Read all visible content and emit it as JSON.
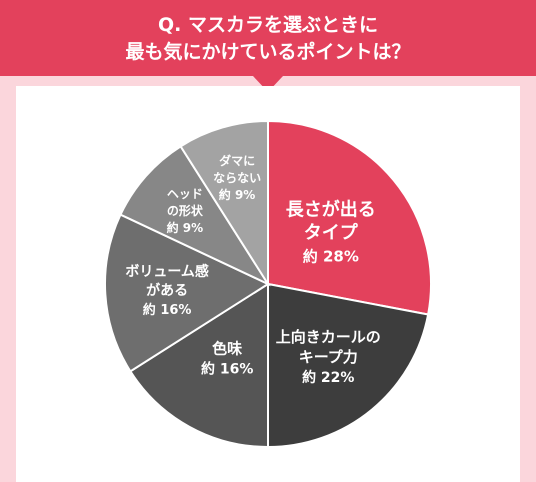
{
  "question": {
    "line1": "Q. マスカラを選ぶときに",
    "line2": "最も気にかけているポイントは？"
  },
  "colors": {
    "banner": "#e3415c",
    "background": "#fbd6dc",
    "panel": "#ffffff"
  },
  "chart_data": {
    "type": "pie",
    "title": "",
    "slices": [
      {
        "label_lines": [
          "長さが出る",
          "タイプ"
        ],
        "value_text": "約 28%",
        "value": 28,
        "color": "#e3415c"
      },
      {
        "label_lines": [
          "上向きカールの",
          "キープ力"
        ],
        "value_text": "約 22%",
        "value": 22,
        "color": "#3d3d3d"
      },
      {
        "label_lines": [
          "色味"
        ],
        "value_text": "約 16%",
        "value": 16,
        "color": "#555555"
      },
      {
        "label_lines": [
          "ボリューム感",
          "がある"
        ],
        "value_text": "約 16%",
        "value": 16,
        "color": "#6e6e6e"
      },
      {
        "label_lines": [
          "ヘッド",
          "の形状"
        ],
        "value_text": "約 9%",
        "value": 9,
        "color": "#878787"
      },
      {
        "label_lines": [
          "ダマに",
          "ならない"
        ],
        "value_text": "約 9%",
        "value": 9,
        "color": "#a3a3a3"
      }
    ]
  }
}
